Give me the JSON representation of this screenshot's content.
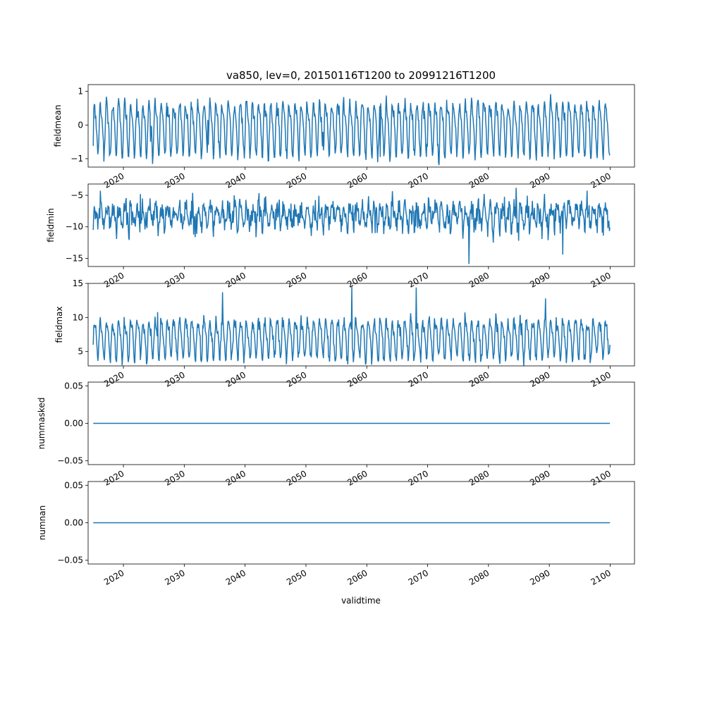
{
  "figure": {
    "title": "va850, lev=0, 20150116T1200 to 20991216T1200",
    "xlabel": "validtime"
  },
  "colors": {
    "line": "#1f77b4",
    "axes": "#000000",
    "background": "#ffffff"
  },
  "chart_data": [
    {
      "type": "line",
      "ylabel": "fieldmean",
      "xlim": [
        2014.2,
        2104.0
      ],
      "ylim": [
        -1.25,
        1.2
      ],
      "yticks": [
        -1,
        0,
        1
      ],
      "ytick_labels": [
        "−1",
        "0",
        "1"
      ],
      "xticks": [
        2020,
        2030,
        2040,
        2050,
        2060,
        2070,
        2080,
        2090,
        2100
      ],
      "xtick_labels": [
        "2020",
        "2030",
        "2040",
        "2050",
        "2060",
        "2070",
        "2080",
        "2090",
        "2100"
      ],
      "x_start": 2015.04,
      "x_end": 2099.96,
      "generator": {
        "period_years": 1.0,
        "amplitude": 0.72,
        "half_period_amplitude": 0.22,
        "noise": 0.18,
        "offset": -0.05
      },
      "series": [
        {
          "values": [
            -0.62,
            -0.5,
            0.15,
            0.42,
            -0.2,
            -0.95,
            -0.6,
            0.55,
            0.2,
            -0.9
          ]
        }
      ]
    },
    {
      "type": "line",
      "ylabel": "fieldmin",
      "xlim": [
        2014.2,
        2104.0
      ],
      "ylim": [
        -16.3,
        -3.2
      ],
      "yticks": [
        -15,
        -10,
        -5
      ],
      "ytick_labels": [
        "−15",
        "−10",
        "−5"
      ],
      "xticks": [
        2020,
        2030,
        2040,
        2050,
        2060,
        2070,
        2080,
        2090,
        2100
      ],
      "xtick_labels": [
        "2020",
        "2030",
        "2040",
        "2050",
        "2060",
        "2070",
        "2080",
        "2090",
        "2100"
      ],
      "x_start": 2015.04,
      "x_end": 2099.96,
      "generator": {
        "period_years": 1.0,
        "amplitude": 1.4,
        "half_period_amplitude": 0.5,
        "noise": 1.7,
        "offset": -8.2
      },
      "series": [
        {
          "values": [
            -10.5,
            -4.8,
            -7.9,
            -5.0,
            -9.3,
            -6.8,
            -11.0,
            -8.0,
            -15.9,
            -3.8,
            -14.4,
            -10.1
          ]
        }
      ]
    },
    {
      "type": "line",
      "ylabel": "fieldmax",
      "xlim": [
        2014.2,
        2104.0
      ],
      "ylim": [
        2.9,
        15.0
      ],
      "yticks": [
        5,
        10,
        15
      ],
      "ytick_labels": [
        "5",
        "10",
        "15"
      ],
      "xticks": [
        2020,
        2030,
        2040,
        2050,
        2060,
        2070,
        2080,
        2090,
        2100
      ],
      "xtick_labels": [
        "2020",
        "2030",
        "2040",
        "2050",
        "2060",
        "2070",
        "2080",
        "2090",
        "2100"
      ],
      "x_start": 2015.04,
      "x_end": 2099.96,
      "generator": {
        "period_years": 1.0,
        "amplitude": 2.6,
        "half_period_amplitude": 0.7,
        "noise": 0.9,
        "offset": 7.0
      },
      "series": [
        {
          "values": [
            6.0,
            10.8,
            13.7,
            4.6,
            14.6,
            14.4,
            3.5,
            12.8,
            6.0
          ]
        }
      ]
    },
    {
      "type": "line",
      "ylabel": "nummasked",
      "xlim": [
        2014.2,
        2104.0
      ],
      "ylim": [
        -0.055,
        0.055
      ],
      "yticks": [
        -0.05,
        0.0,
        0.05
      ],
      "ytick_labels": [
        "−0.05",
        "0.00",
        "0.05"
      ],
      "xticks": [
        2020,
        2030,
        2040,
        2050,
        2060,
        2070,
        2080,
        2090,
        2100
      ],
      "xtick_labels": [
        "2020",
        "2030",
        "2040",
        "2050",
        "2060",
        "2070",
        "2080",
        "2090",
        "2100"
      ],
      "x_start": 2015.04,
      "x_end": 2099.96,
      "series": [
        {
          "x": [
            2015.04,
            2099.96
          ],
          "values": [
            0.0,
            0.0
          ]
        }
      ]
    },
    {
      "type": "line",
      "ylabel": "numnan",
      "xlim": [
        2014.2,
        2104.0
      ],
      "ylim": [
        -0.055,
        0.055
      ],
      "yticks": [
        -0.05,
        0.0,
        0.05
      ],
      "ytick_labels": [
        "−0.05",
        "0.00",
        "0.05"
      ],
      "xticks": [
        2020,
        2030,
        2040,
        2050,
        2060,
        2070,
        2080,
        2090,
        2100
      ],
      "xtick_labels": [
        "2020",
        "2030",
        "2040",
        "2050",
        "2060",
        "2070",
        "2080",
        "2090",
        "2100"
      ],
      "x_start": 2015.04,
      "x_end": 2099.96,
      "series": [
        {
          "x": [
            2015.04,
            2099.96
          ],
          "values": [
            0.0,
            0.0
          ]
        }
      ]
    }
  ]
}
